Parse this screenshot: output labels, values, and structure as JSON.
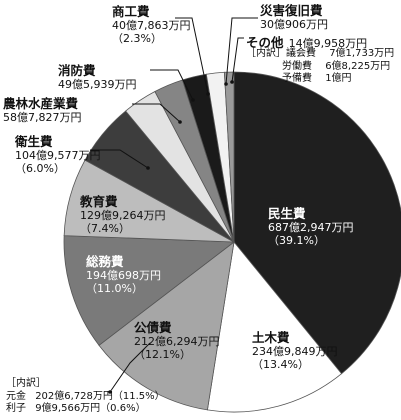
{
  "chart_data": {
    "type": "pie",
    "slices": [
      {
        "name": "民生費",
        "amount": "687億2,947万円",
        "pct_label": "（39.1%）",
        "value": 39.1,
        "color": "#1f1f1f"
      },
      {
        "name": "土木費",
        "amount": "234億9,849万円",
        "pct_label": "（13.4%）",
        "value": 13.4,
        "color": "#ffffff"
      },
      {
        "name": "公債費",
        "amount": "212億6,294万円",
        "pct_label": "（12.1%）",
        "value": 12.1,
        "color": "#a6a6a6"
      },
      {
        "name": "総務費",
        "amount": "194億698万円",
        "pct_label": "（11.0%）",
        "value": 11.0,
        "color": "#7a7a7a"
      },
      {
        "name": "教育費",
        "amount": "129億9,264万円",
        "pct_label": "（7.4%）",
        "value": 7.4,
        "color": "#bdbdbd"
      },
      {
        "name": "衛生費",
        "amount": "104億9,577万円",
        "pct_label": "（6.0%）",
        "value": 6.0,
        "color": "#3d3d3d"
      },
      {
        "name": "農林水産業費",
        "amount": "58億7,827万円",
        "pct_label": "（3.3%）",
        "value": 3.3,
        "color": "#e3e3e3"
      },
      {
        "name": "消防費",
        "amount": "49億5,939万円",
        "pct_label": "（2.8%）",
        "value": 2.8,
        "color": "#858585"
      },
      {
        "name": "商工費",
        "amount": "40億7,863万円",
        "pct_label": "（2.3%）",
        "value": 2.3,
        "color": "#1a1a1a"
      },
      {
        "name": "災害復旧費",
        "amount": "30億906万円",
        "pct_label": "（1.7%）",
        "value": 1.7,
        "color": "#f2f2f2"
      },
      {
        "name": "その他",
        "amount": "14億9,958万円",
        "pct_label": "（0.9%）",
        "value": 0.9,
        "color": "#9a9a9a"
      }
    ]
  },
  "breakdowns": {
    "other": {
      "header": "［内訳］",
      "rows": [
        {
          "name": "議会費",
          "amount": "7億1,733万円"
        },
        {
          "name": "労働費",
          "amount": "6億8,225万円"
        },
        {
          "name": "予備費",
          "amount": "1億円"
        }
      ]
    },
    "debt": {
      "header": "［内訳］",
      "rows": [
        {
          "name": "元金",
          "amount": "202億6,728万円（11.5%）"
        },
        {
          "name": "利子",
          "amount": "9億9,566万円（0.6%）"
        }
      ]
    }
  }
}
